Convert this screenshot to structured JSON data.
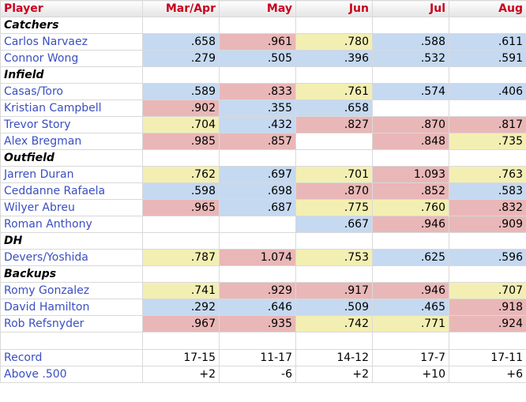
{
  "header": {
    "player": "Player",
    "months": [
      "Mar/Apr",
      "May",
      "Jun",
      "Jul",
      "Aug"
    ]
  },
  "groups": [
    {
      "name": "Catchers",
      "players": [
        {
          "name": "Carlos Narvaez",
          "cells": [
            {
              "v": ".658",
              "c": "blue"
            },
            {
              "v": ".961",
              "c": "red"
            },
            {
              "v": ".780",
              "c": "yellow"
            },
            {
              "v": ".588",
              "c": "blue"
            },
            {
              "v": ".611",
              "c": "blue"
            }
          ]
        },
        {
          "name": "Connor Wong",
          "cells": [
            {
              "v": ".279",
              "c": "blue"
            },
            {
              "v": ".505",
              "c": "blue"
            },
            {
              "v": ".396",
              "c": "blue"
            },
            {
              "v": ".532",
              "c": "blue"
            },
            {
              "v": ".591",
              "c": "blue"
            }
          ]
        }
      ]
    },
    {
      "name": "Infield",
      "players": [
        {
          "name": "Casas/Toro",
          "cells": [
            {
              "v": ".589",
              "c": "blue"
            },
            {
              "v": ".833",
              "c": "red"
            },
            {
              "v": ".761",
              "c": "yellow"
            },
            {
              "v": ".574",
              "c": "blue"
            },
            {
              "v": ".406",
              "c": "blue"
            }
          ]
        },
        {
          "name": "Kristian Campbell",
          "cells": [
            {
              "v": ".902",
              "c": "red"
            },
            {
              "v": ".355",
              "c": "blue"
            },
            {
              "v": ".658",
              "c": "blue"
            },
            {
              "v": "",
              "c": "none"
            },
            {
              "v": "",
              "c": "none"
            }
          ]
        },
        {
          "name": "Trevor Story",
          "cells": [
            {
              "v": ".704",
              "c": "yellow"
            },
            {
              "v": ".432",
              "c": "blue"
            },
            {
              "v": ".827",
              "c": "red"
            },
            {
              "v": ".870",
              "c": "red"
            },
            {
              "v": ".817",
              "c": "red"
            }
          ]
        },
        {
          "name": "Alex Bregman",
          "cells": [
            {
              "v": ".985",
              "c": "red"
            },
            {
              "v": ".857",
              "c": "red"
            },
            {
              "v": "",
              "c": "none"
            },
            {
              "v": ".848",
              "c": "red"
            },
            {
              "v": ".735",
              "c": "yellow"
            }
          ]
        }
      ]
    },
    {
      "name": "Outfield",
      "players": [
        {
          "name": "Jarren Duran",
          "cells": [
            {
              "v": ".762",
              "c": "yellow"
            },
            {
              "v": ".697",
              "c": "blue"
            },
            {
              "v": ".701",
              "c": "yellow"
            },
            {
              "v": "1.093",
              "c": "red"
            },
            {
              "v": ".763",
              "c": "yellow"
            }
          ]
        },
        {
          "name": "Ceddanne Rafaela",
          "cells": [
            {
              "v": ".598",
              "c": "blue"
            },
            {
              "v": ".698",
              "c": "blue"
            },
            {
              "v": ".870",
              "c": "red"
            },
            {
              "v": ".852",
              "c": "red"
            },
            {
              "v": ".583",
              "c": "blue"
            }
          ]
        },
        {
          "name": "Wilyer Abreu",
          "cells": [
            {
              "v": ".965",
              "c": "red"
            },
            {
              "v": ".687",
              "c": "blue"
            },
            {
              "v": ".775",
              "c": "yellow"
            },
            {
              "v": ".760",
              "c": "yellow"
            },
            {
              "v": ".832",
              "c": "red"
            }
          ]
        },
        {
          "name": "Roman Anthony",
          "cells": [
            {
              "v": "",
              "c": "none"
            },
            {
              "v": "",
              "c": "none"
            },
            {
              "v": ".667",
              "c": "blue"
            },
            {
              "v": ".946",
              "c": "red"
            },
            {
              "v": ".909",
              "c": "red"
            }
          ]
        }
      ]
    },
    {
      "name": "DH",
      "players": [
        {
          "name": "Devers/Yoshida",
          "cells": [
            {
              "v": ".787",
              "c": "yellow"
            },
            {
              "v": "1.074",
              "c": "red"
            },
            {
              "v": ".753",
              "c": "yellow"
            },
            {
              "v": ".625",
              "c": "blue"
            },
            {
              "v": ".596",
              "c": "blue"
            }
          ]
        }
      ]
    },
    {
      "name": "Backups",
      "players": [
        {
          "name": "Romy Gonzalez",
          "cells": [
            {
              "v": ".741",
              "c": "yellow"
            },
            {
              "v": ".929",
              "c": "red"
            },
            {
              "v": ".917",
              "c": "red"
            },
            {
              "v": ".946",
              "c": "red"
            },
            {
              "v": ".707",
              "c": "yellow"
            }
          ]
        },
        {
          "name": "David Hamilton",
          "cells": [
            {
              "v": ".292",
              "c": "blue"
            },
            {
              "v": ".646",
              "c": "blue"
            },
            {
              "v": ".509",
              "c": "blue"
            },
            {
              "v": ".465",
              "c": "blue"
            },
            {
              "v": ".918",
              "c": "red"
            }
          ]
        },
        {
          "name": "Rob Refsnyder",
          "cells": [
            {
              "v": ".967",
              "c": "red"
            },
            {
              "v": ".935",
              "c": "red"
            },
            {
              "v": ".742",
              "c": "yellow"
            },
            {
              "v": ".771",
              "c": "yellow"
            },
            {
              "v": ".924",
              "c": "red"
            }
          ]
        }
      ]
    }
  ],
  "footer": [
    {
      "label": "Record",
      "values": [
        "17-15",
        "11-17",
        "14-12",
        "17-7",
        "17-11"
      ]
    },
    {
      "label": "Above .500",
      "values": [
        "+2",
        "-6",
        "+2",
        "+10",
        "+6"
      ]
    }
  ],
  "colors": {
    "blue": "#c5d9f1",
    "red": "#e9b7b7",
    "yellow": "#f3efb3",
    "header_text": "#c8001e",
    "player_link": "#3a4fc0"
  }
}
